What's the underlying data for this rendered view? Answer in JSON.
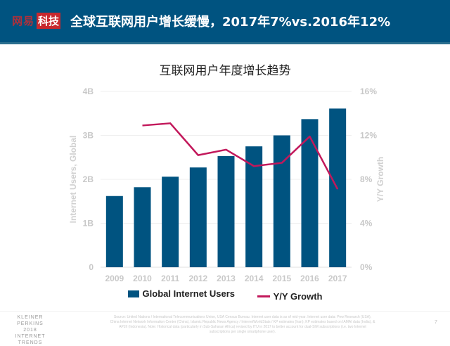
{
  "header": {
    "logo_left": "网易",
    "logo_right": "科技",
    "title": "全球互联网用户增长缓慢，2017年7%vs.2016年12%"
  },
  "chart_data": {
    "type": "bar+line",
    "title": "互联网用户年度增长趋势",
    "categories": [
      "2009",
      "2010",
      "2011",
      "2012",
      "2013",
      "2014",
      "2015",
      "2016",
      "2017"
    ],
    "series": [
      {
        "name": "Global Internet Users",
        "type": "bar",
        "axis": "left",
        "unit": "B",
        "values": [
          1.62,
          1.82,
          2.06,
          2.27,
          2.53,
          2.75,
          3.0,
          3.37,
          3.61
        ],
        "color": "#005380"
      },
      {
        "name": "Y/Y Growth",
        "type": "line",
        "axis": "right",
        "unit": "%",
        "values": [
          null,
          12.9,
          13.1,
          10.2,
          10.7,
          9.2,
          9.5,
          11.9,
          7.1
        ],
        "color": "#c2185b"
      }
    ],
    "ylabel": "Internet Users, Global",
    "y2label": "Y/Y Growth",
    "ylim": [
      0,
      4
    ],
    "y2lim": [
      0,
      16
    ],
    "yticks": [
      "0",
      "1B",
      "2B",
      "3B",
      "4B"
    ],
    "y2ticks": [
      "0%",
      "4%",
      "8%",
      "12%",
      "16%"
    ],
    "grid": true,
    "legend": "bottom"
  },
  "footer": {
    "brand": [
      "KLEINER PERKINS",
      "2018",
      "INTERNET TRENDS"
    ],
    "source": "Source: United Nations / International Telecommunications Union, USA Census Bureau. Internet user data is as of mid-year. Internet user data: Pew Research (USA), China Internet Network Information Center (China), Islamic Republic News Agency / InternetWorldStats / KP estimates (Iran), KP estimates based on IAMAI data (India), & APJII (Indonesia). Note: Historical data (particularly in Sub-Saharan Africa) revised by ITU in 2017 to better account for dual-SIM subscriptions (i.e. two Internet subscriptions per single smartphone user).",
    "page": "7"
  }
}
